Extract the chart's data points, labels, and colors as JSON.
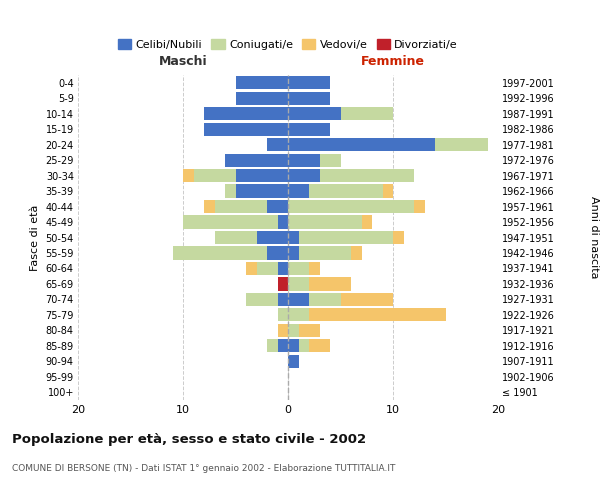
{
  "age_groups": [
    "100+",
    "95-99",
    "90-94",
    "85-89",
    "80-84",
    "75-79",
    "70-74",
    "65-69",
    "60-64",
    "55-59",
    "50-54",
    "45-49",
    "40-44",
    "35-39",
    "30-34",
    "25-29",
    "20-24",
    "15-19",
    "10-14",
    "5-9",
    "0-4"
  ],
  "birth_years": [
    "≤ 1901",
    "1902-1906",
    "1907-1911",
    "1912-1916",
    "1917-1921",
    "1922-1926",
    "1927-1931",
    "1932-1936",
    "1937-1941",
    "1942-1946",
    "1947-1951",
    "1952-1956",
    "1957-1961",
    "1962-1966",
    "1967-1971",
    "1972-1976",
    "1977-1981",
    "1982-1986",
    "1987-1991",
    "1992-1996",
    "1997-2001"
  ],
  "males": {
    "celibi": [
      0,
      0,
      0,
      1,
      0,
      0,
      1,
      0,
      1,
      2,
      3,
      1,
      2,
      5,
      5,
      6,
      2,
      8,
      8,
      5,
      5
    ],
    "coniugati": [
      0,
      0,
      0,
      1,
      0,
      1,
      3,
      0,
      2,
      9,
      4,
      9,
      5,
      1,
      4,
      0,
      0,
      0,
      0,
      0,
      0
    ],
    "vedovi": [
      0,
      0,
      0,
      0,
      1,
      0,
      0,
      0,
      1,
      0,
      0,
      0,
      1,
      0,
      1,
      0,
      0,
      0,
      0,
      0,
      0
    ],
    "divorziati": [
      0,
      0,
      0,
      0,
      0,
      0,
      0,
      1,
      0,
      0,
      0,
      0,
      0,
      0,
      0,
      0,
      0,
      0,
      0,
      0,
      0
    ]
  },
  "females": {
    "nubili": [
      0,
      0,
      1,
      1,
      0,
      0,
      2,
      0,
      0,
      1,
      1,
      0,
      0,
      2,
      3,
      3,
      14,
      4,
      5,
      4,
      4
    ],
    "coniugate": [
      0,
      0,
      0,
      1,
      1,
      2,
      3,
      2,
      2,
      5,
      9,
      7,
      12,
      7,
      9,
      2,
      5,
      0,
      5,
      0,
      0
    ],
    "vedove": [
      0,
      0,
      0,
      2,
      2,
      13,
      5,
      4,
      1,
      1,
      1,
      1,
      1,
      1,
      0,
      0,
      0,
      0,
      0,
      0,
      0
    ],
    "divorziate": [
      0,
      0,
      0,
      0,
      0,
      0,
      0,
      0,
      0,
      0,
      0,
      0,
      0,
      0,
      0,
      0,
      0,
      0,
      0,
      0,
      0
    ]
  },
  "color_celibi": "#4472c4",
  "color_coniugati": "#c5d9a0",
  "color_vedovi": "#f5c56a",
  "color_divorziati": "#c0202a",
  "title": "Popolazione per età, sesso e stato civile - 2002",
  "subtitle": "COMUNE DI BERSONE (TN) - Dati ISTAT 1° gennaio 2002 - Elaborazione TUTTITALIA.IT",
  "xlabel_left": "Maschi",
  "xlabel_right": "Femmine",
  "ylabel_left": "Fasce di età",
  "ylabel_right": "Anni di nascita",
  "xlim": 20,
  "background_color": "#ffffff",
  "grid_color": "#cccccc"
}
